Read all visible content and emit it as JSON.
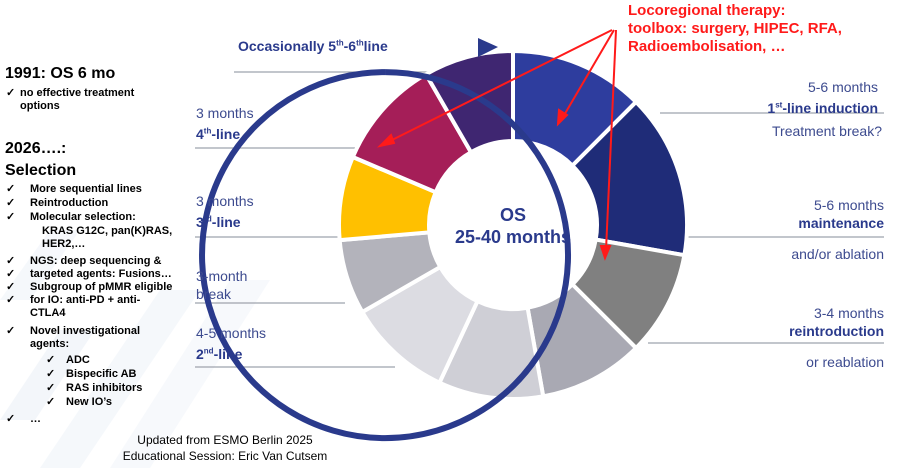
{
  "left_panel": {
    "heading_1991": "1991: OS 6 mo",
    "no_effective_1": "no effective treatment",
    "no_effective_2": "options",
    "heading_2026": "2026….:",
    "heading_selection": "Selection",
    "items": [
      "More sequential lines",
      "Reintroduction",
      "Molecular selection:",
      "KRAS G12C, pan(K)RAS,",
      "HER2,…",
      "NGS: deep sequencing &",
      "targeted agents: Fusions…",
      "Subgroup of pMMR eligible",
      "for IO: anti-PD + anti-",
      "CTLA4",
      "Novel investigational",
      "agents:",
      "ADC",
      "Bispecific AB",
      "RAS inhibitors",
      "New IO’s",
      "…"
    ]
  },
  "arrow_label": {
    "text_a": "Occasionally 5",
    "sup_a": "th",
    "dash": "-",
    "text_b": "6",
    "sup_b": "th",
    "text_c": "line"
  },
  "center": {
    "line1": "OS",
    "line2": "25-40 months"
  },
  "locoregional": {
    "line1": "Locoregional therapy:",
    "line2": "toolbox: surgery, HIPEC, RFA,",
    "line3": "Radioembolisation, …"
  },
  "right_labels": {
    "first_duration": "5-6 months",
    "first_num": "1",
    "first_sup": "st",
    "first_rest": "-line induction",
    "treatment_break": "Treatment break?",
    "maint_duration": "5-6 months",
    "maint_label": "maintenance",
    "maint_extra": "and/or ablation",
    "reintro_duration": "3-4 months",
    "reintro_label": "reintroduction",
    "reintro_extra": "or reablation"
  },
  "left_labels": {
    "fourth_duration": "3 months",
    "fourth_num": "4",
    "fourth_sup": "th",
    "fourth_rest": "-line",
    "third_duration": "3 months",
    "third_num": "3",
    "third_sup": "rd",
    "third_rest": "-line",
    "break_1": "3-month",
    "break_2": "break",
    "second_duration": "4-5 months",
    "second_num": "2",
    "second_sup": "nd",
    "second_rest": "-line"
  },
  "footer": {
    "line1": "Updated from ESMO Berlin 2025",
    "line2": "Educational Session: Eric Van Cutsem"
  },
  "colors": {
    "seg_first": "#2e3d9e",
    "seg_maint": "#1f2c78",
    "seg_reintro": "#808080",
    "seg_second_a": "#a9a9b3",
    "seg_second_b": "#cfcfd6",
    "seg_break": "#dcdce2",
    "seg_third_a": "#b3b3bb",
    "seg_yellow": "#ffc000",
    "seg_fourth": "#a51e58",
    "seg_fifth": "#3f2671",
    "accent_blue": "#2a3a8c",
    "red": "#ff1a1a"
  }
}
